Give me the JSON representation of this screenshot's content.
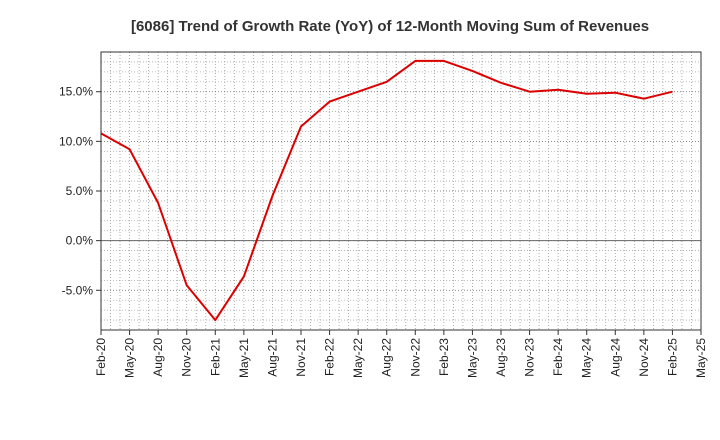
{
  "chart_data": {
    "type": "line",
    "title": "[6086]  Trend of Growth Rate (YoY) of 12-Month Moving Sum of Revenues",
    "xlabel": "",
    "ylabel": "",
    "x_tick_labels": [
      "Feb-20",
      "May-20",
      "Aug-20",
      "Nov-20",
      "Feb-21",
      "May-21",
      "Aug-21",
      "Nov-21",
      "Feb-22",
      "May-22",
      "Aug-22",
      "Nov-22",
      "Feb-23",
      "May-23",
      "Aug-23",
      "Nov-23",
      "Feb-24",
      "May-24",
      "Aug-24",
      "Nov-24",
      "Feb-25",
      "May-25"
    ],
    "y_ticks": [
      -5,
      0,
      5,
      10,
      15
    ],
    "y_tick_labels": [
      "-5.0%",
      "0.0%",
      "5.0%",
      "10.0%",
      "15.0%"
    ],
    "ylim": [
      -9,
      19
    ],
    "grid": true,
    "line_color": "#dd0000",
    "series": [
      {
        "name": "",
        "x": [
          "Feb-20",
          "May-20",
          "Aug-20",
          "Nov-20",
          "Feb-21",
          "May-21",
          "Aug-21",
          "Nov-21",
          "Feb-22",
          "May-22",
          "Aug-22",
          "Nov-22",
          "Feb-23",
          "May-23",
          "Aug-23",
          "Nov-23",
          "Feb-24",
          "May-24",
          "Aug-24",
          "Nov-24",
          "Feb-25"
        ],
        "values": [
          10.8,
          9.2,
          3.8,
          -4.5,
          -8.0,
          -3.6,
          4.5,
          11.5,
          14.0,
          15.0,
          16.0,
          18.1,
          18.1,
          17.1,
          15.9,
          15.0,
          15.2,
          14.8,
          14.9,
          14.3,
          15.0
        ]
      }
    ]
  }
}
